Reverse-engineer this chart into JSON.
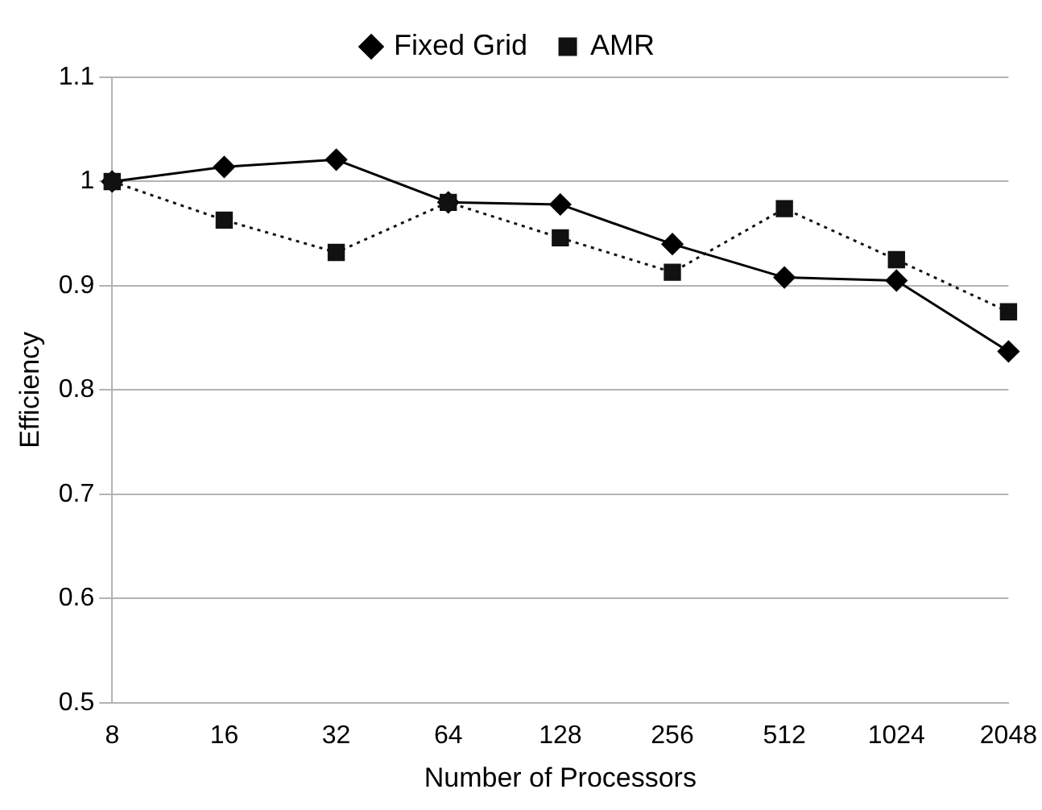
{
  "chart_data": {
    "type": "line",
    "xlabel": "Number of Processors",
    "ylabel": "Efficiency",
    "categories": [
      "8",
      "16",
      "32",
      "64",
      "128",
      "256",
      "512",
      "1024",
      "2048"
    ],
    "series": [
      {
        "name": "Fixed Grid",
        "color": "#000000",
        "marker": "diamond",
        "line_style": "solid",
        "values": [
          1.0,
          1.014,
          1.021,
          0.98,
          0.978,
          0.94,
          0.908,
          0.905,
          0.837
        ]
      },
      {
        "name": "AMR",
        "color": "#111111",
        "marker": "square",
        "line_style": "dotted",
        "values": [
          1.0,
          0.963,
          0.932,
          0.98,
          0.946,
          0.913,
          0.974,
          0.925,
          0.875
        ]
      }
    ],
    "ylim": [
      0.5,
      1.1
    ],
    "yticks": [
      0.5,
      0.6,
      0.7,
      0.8,
      0.9,
      1,
      1.1
    ],
    "grid": "y",
    "legend": "top"
  }
}
